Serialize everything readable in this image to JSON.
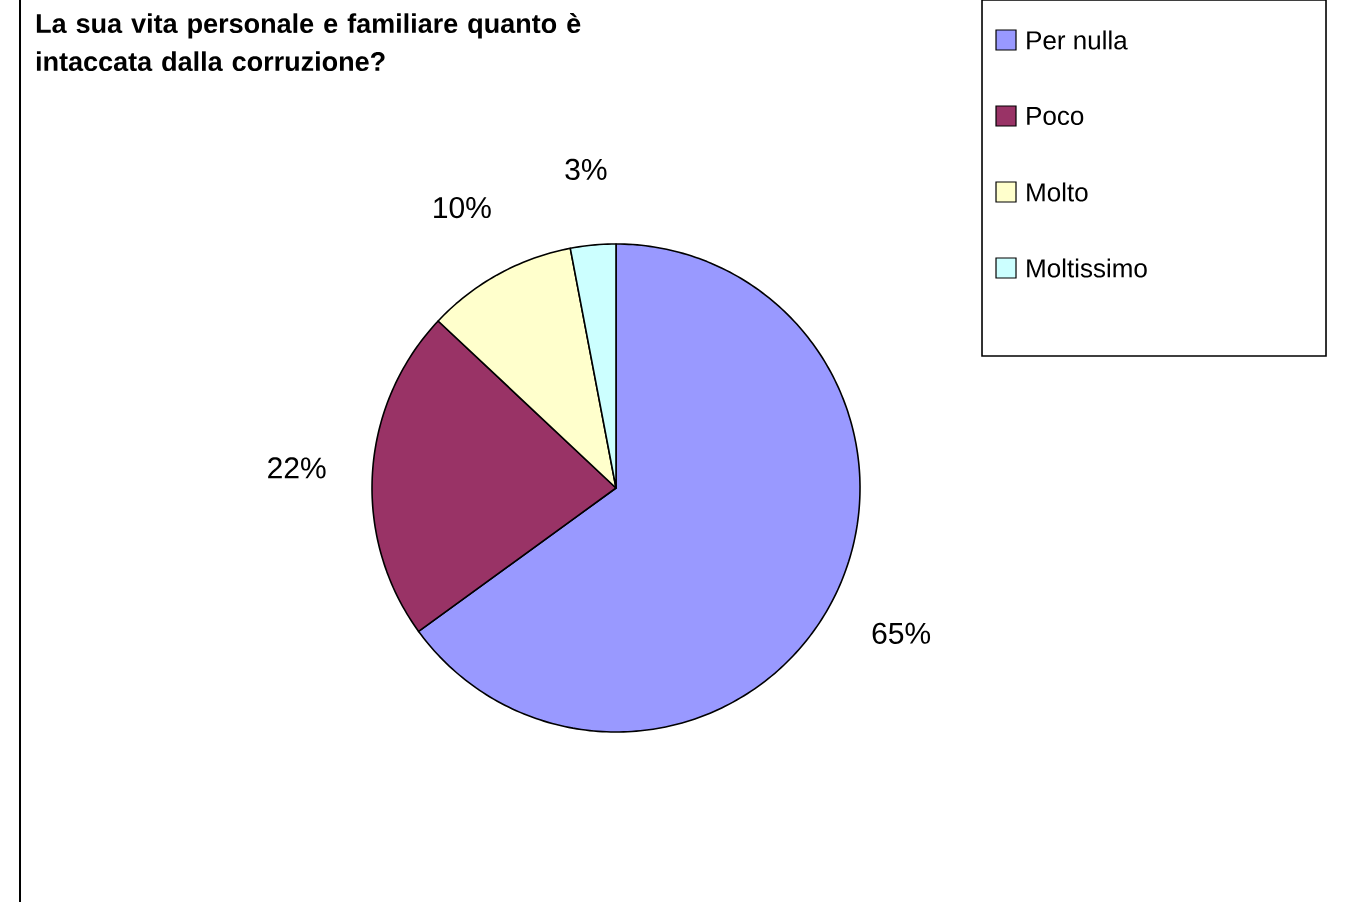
{
  "chart_data": {
    "type": "pie",
    "title": "La sua vita personale e familiare quanto è intaccata dalla corruzione?",
    "categories": [
      "Per nulla",
      "Poco",
      "Molto",
      "Moltissimo"
    ],
    "values": [
      65,
      22,
      10,
      3
    ],
    "value_labels": [
      "65%",
      "22%",
      "10%",
      "3%"
    ],
    "colors": [
      "#9999ff",
      "#993366",
      "#ffffcc",
      "#ccffff"
    ],
    "legend": "top right"
  }
}
